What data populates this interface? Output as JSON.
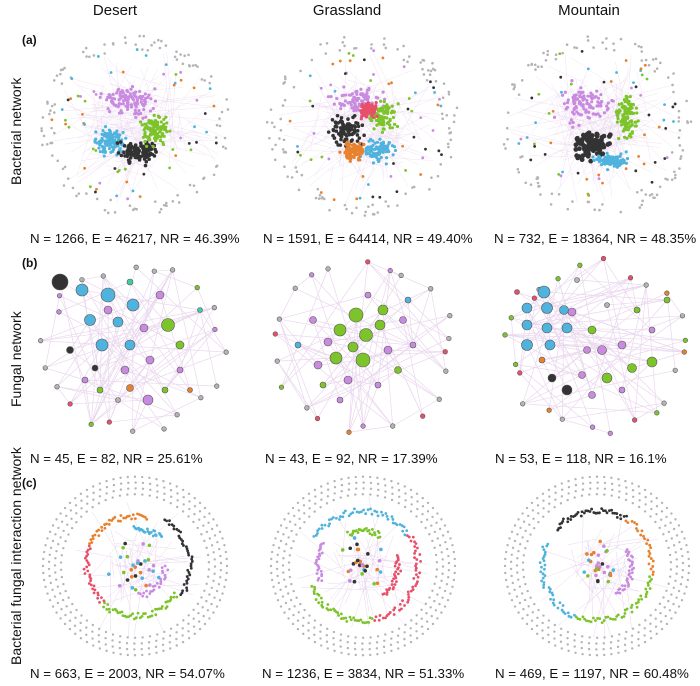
{
  "columns": [
    "Desert",
    "Grassland",
    "Mountain"
  ],
  "rows": [
    {
      "label": "(a)",
      "title": "Bacterial network",
      "stats": [
        "N = 1266, E = 46217, NR = 46.39%",
        "N = 1591, E = 64414, NR = 49.40%",
        "N = 732, E = 18364, NR = 48.35%"
      ]
    },
    {
      "label": "(b)",
      "title": "Fungal network",
      "stats": [
        "N = 45, E = 82, NR = 25.61%",
        "N = 43, E = 92, NR = 17.39%",
        "N = 53, E = 118, NR = 16.1%"
      ]
    },
    {
      "label": "(c)",
      "title": "Bacterial fungal interaction network",
      "stats": [
        "N = 663, E = 2003, NR = 54.07%",
        "N = 1236, E = 3834, NR = 51.33%",
        "N = 469, E = 1197, NR = 60.48%"
      ]
    }
  ],
  "colors": {
    "purple": "#c98be0",
    "green": "#7cc42a",
    "blue": "#4fb3dd",
    "black": "#333333",
    "orange": "#e8812e",
    "red": "#e8506a",
    "teal": "#3fcf9f",
    "gray": "#b4b4b4",
    "edge": "#ead7ee"
  }
}
